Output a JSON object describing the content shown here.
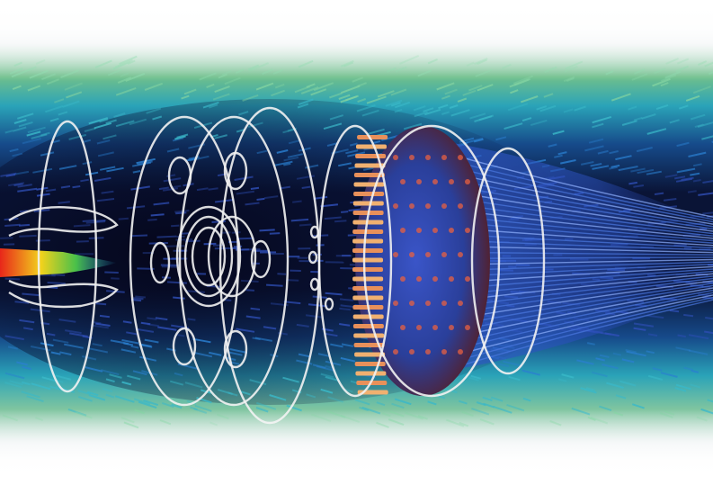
{
  "image": {
    "subject": "cfd-flow-visualization",
    "colors": {
      "background_dark": "#07081a",
      "flow_outer_cyan": "#2fb6c8",
      "flow_outer_green": "#5fc27a",
      "flow_inner_blue": "#2f5fd8",
      "jet_red": "#e8261a",
      "jet_yellow": "#f2d21c",
      "jet_green": "#49c04a",
      "wireframe": "#f2f2f2",
      "injector_orange": "#e89a5a",
      "disc_red": "#6a1a10"
    }
  }
}
